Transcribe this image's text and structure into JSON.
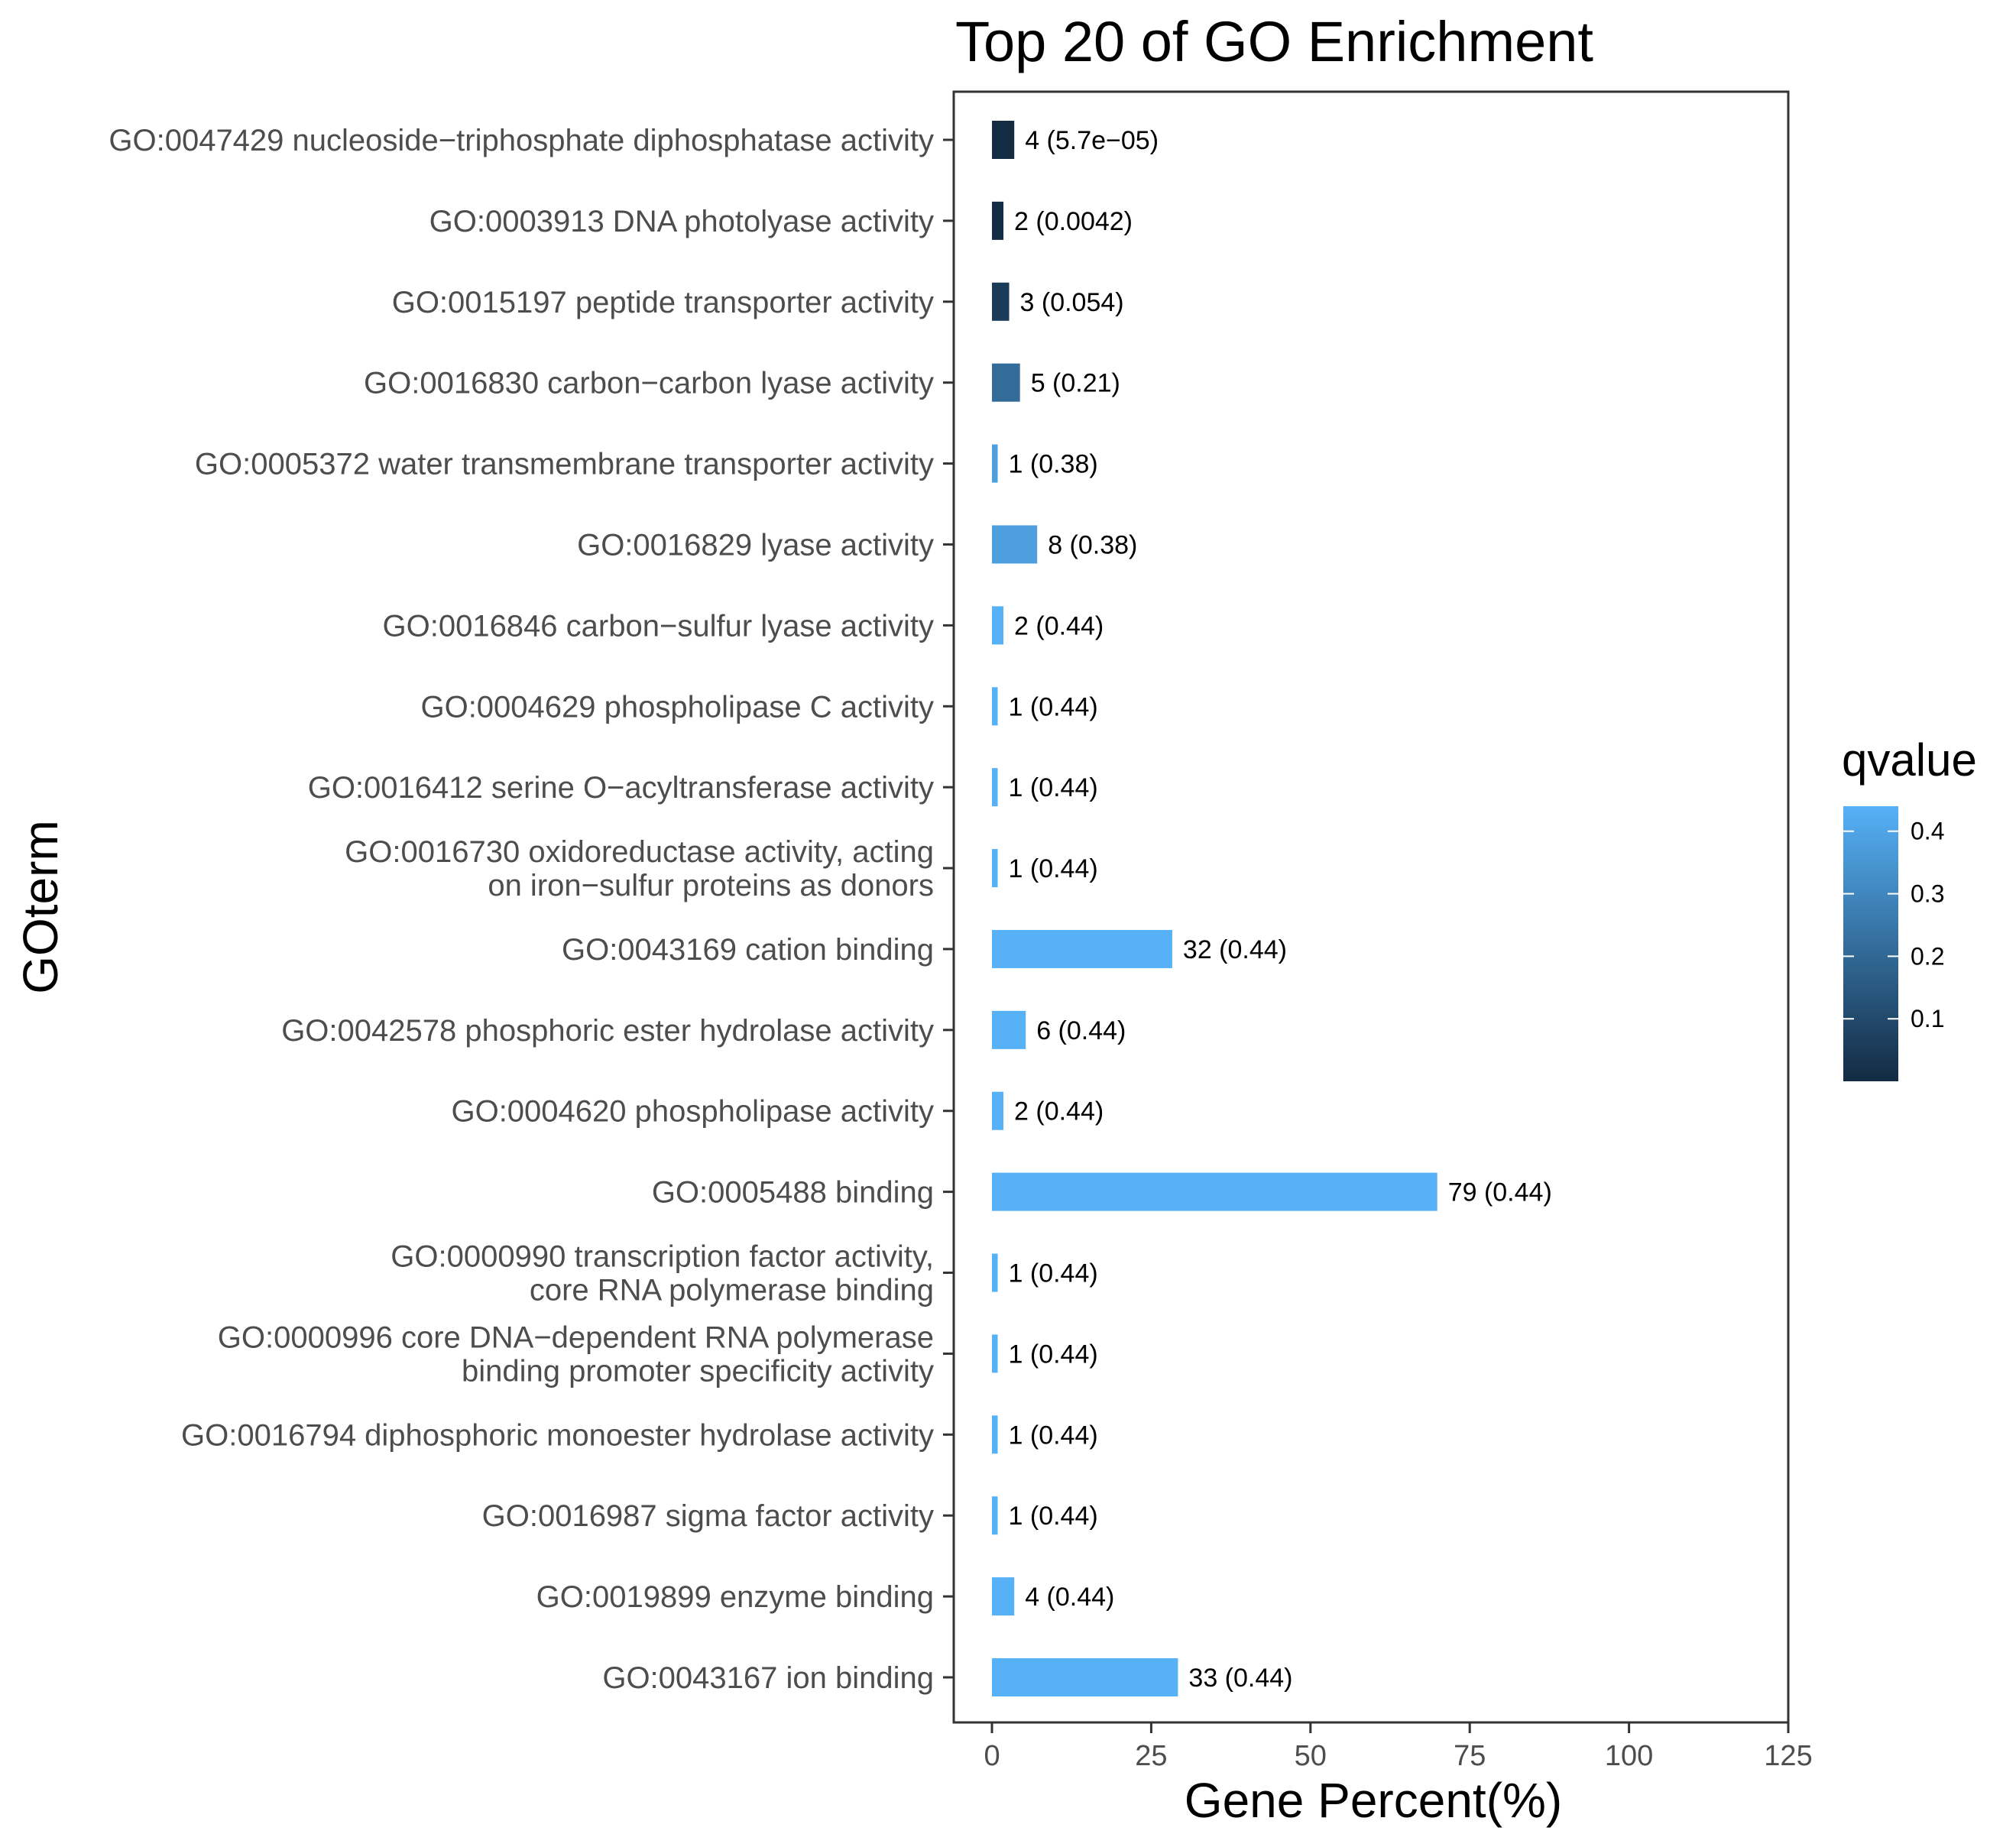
{
  "chart_data": {
    "type": "bar",
    "orientation": "horizontal",
    "title": "Top 20 of GO Enrichment",
    "xlabel": "Gene Percent(%)",
    "ylabel": "GOterm",
    "xlim": [
      -6,
      125
    ],
    "xticks": [
      0,
      25,
      50,
      75,
      100,
      125
    ],
    "grid": false,
    "legend": {
      "title": "qvalue",
      "type": "colorbar",
      "position": "right",
      "range": [
        5.7e-05,
        0.44
      ],
      "ticks": [
        "0.1",
        "0.2",
        "0.3",
        "0.4"
      ],
      "color_low": "#132b43",
      "color_high": "#56b1f7"
    },
    "categories": [
      [
        "GO:0047429 nucleoside−triphosphate diphosphatase activity"
      ],
      [
        "GO:0003913 DNA photolyase activity"
      ],
      [
        "GO:0015197 peptide transporter activity"
      ],
      [
        "GO:0016830 carbon−carbon lyase activity"
      ],
      [
        "GO:0005372 water transmembrane transporter activity"
      ],
      [
        "GO:0016829 lyase activity"
      ],
      [
        "GO:0016846 carbon−sulfur lyase activity"
      ],
      [
        "GO:0004629 phospholipase C activity"
      ],
      [
        "GO:0016412 serine O−acyltransferase activity"
      ],
      [
        "GO:0016730 oxidoreductase activity, acting",
        "on iron−sulfur proteins as donors"
      ],
      [
        "GO:0043169 cation binding"
      ],
      [
        "GO:0042578 phosphoric ester hydrolase activity"
      ],
      [
        "GO:0004620 phospholipase activity"
      ],
      [
        "GO:0005488 binding"
      ],
      [
        "GO:0000990 transcription factor activity,",
        "core RNA polymerase binding"
      ],
      [
        "GO:0000996 core DNA−dependent RNA polymerase",
        "binding promoter specificity activity"
      ],
      [
        "GO:0016794 diphosphoric monoester hydrolase activity"
      ],
      [
        "GO:0016987 sigma factor activity"
      ],
      [
        "GO:0019899 enzyme binding"
      ],
      [
        "GO:0043167 ion binding"
      ]
    ],
    "values": [
      3.5,
      1.8,
      2.7,
      4.4,
      0.9,
      7.1,
      1.8,
      0.9,
      0.9,
      0.9,
      28.3,
      5.3,
      1.8,
      69.9,
      0.9,
      0.9,
      0.9,
      0.9,
      3.5,
      29.2
    ],
    "qvalues": [
      5.7e-05,
      0.0042,
      0.054,
      0.21,
      0.38,
      0.38,
      0.44,
      0.44,
      0.44,
      0.44,
      0.44,
      0.44,
      0.44,
      0.44,
      0.44,
      0.44,
      0.44,
      0.44,
      0.44,
      0.44
    ],
    "bar_labels": [
      "4 (5.7e−05)",
      "2 (0.0042)",
      "3 (0.054)",
      "5 (0.21)",
      "1 (0.38)",
      "8 (0.38)",
      "2 (0.44)",
      "1 (0.44)",
      "1 (0.44)",
      "1 (0.44)",
      "32 (0.44)",
      "6 (0.44)",
      "2 (0.44)",
      "79 (0.44)",
      "1 (0.44)",
      "1 (0.44)",
      "1 (0.44)",
      "1 (0.44)",
      "4 (0.44)",
      "33 (0.44)"
    ]
  }
}
